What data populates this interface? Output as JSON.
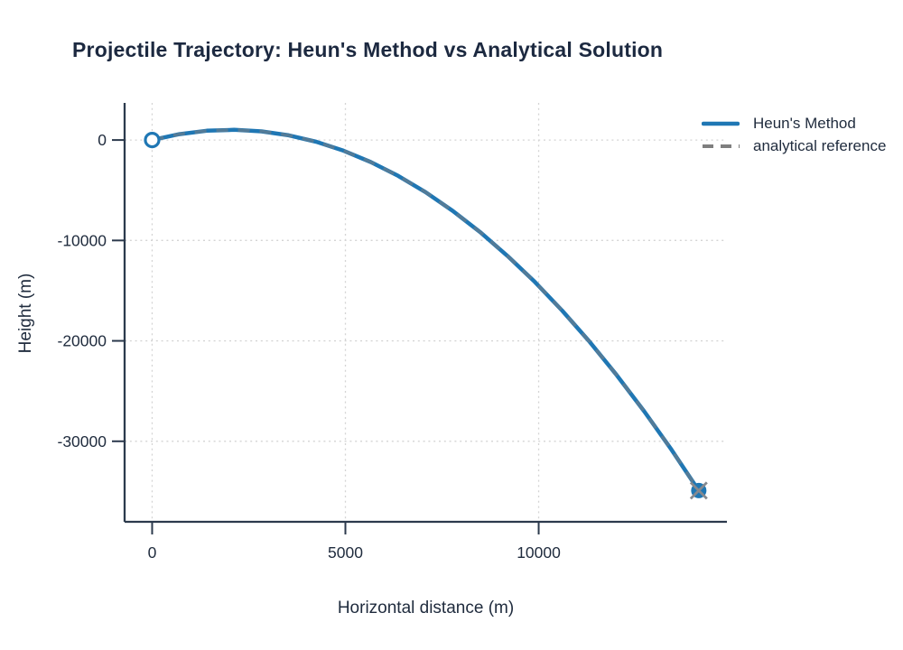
{
  "chart_data": {
    "type": "line",
    "title": "Projectile Trajectory: Heun's Method vs Analytical Solution",
    "xlabel": "Horizontal distance (m)",
    "ylabel": "Height (m)",
    "xlim": [
      -712,
      14870
    ],
    "ylim": [
      -38020,
      3695
    ],
    "x_ticks": {
      "values": [
        0,
        5000,
        10000
      ],
      "labels": [
        "0",
        "5000",
        "10000"
      ]
    },
    "y_ticks": {
      "values": [
        0,
        -10000,
        -20000,
        -30000
      ],
      "labels": [
        "0",
        "-10000",
        "-20000",
        "-30000"
      ]
    },
    "grid": "dotted",
    "legend_position": "top-right-outside",
    "colors": {
      "ink": "#1f2b3d",
      "axis": "#2c3a4d",
      "grid": "#d4d4d4",
      "heun_blue": "#1f77b4",
      "analytical_gray": "#7f7f7f"
    },
    "series": [
      {
        "name": "Heun's Method",
        "color": "#1f77b4",
        "style": "solid",
        "marker_start": "open-circle",
        "marker_end": "filled-circle",
        "points": [
          [
            0,
            0
          ],
          [
            707,
            585
          ],
          [
            1414,
            924
          ],
          [
            2121,
            1018
          ],
          [
            2828,
            866
          ],
          [
            3536,
            470
          ],
          [
            4243,
            -172
          ],
          [
            4950,
            -1059
          ],
          [
            5657,
            -2191
          ],
          [
            6364,
            -3569
          ],
          [
            7071,
            -5191
          ],
          [
            7778,
            -7059
          ],
          [
            8485,
            -9173
          ],
          [
            9192,
            -11531
          ],
          [
            9900,
            -14135
          ],
          [
            10607,
            -16984
          ],
          [
            11314,
            -20078
          ],
          [
            12021,
            -23418
          ],
          [
            12728,
            -27003
          ],
          [
            13435,
            -30833
          ],
          [
            14142,
            -34908
          ]
        ]
      },
      {
        "name": "analytical reference",
        "color": "#7f7f7f",
        "style": "dashed",
        "marker_end": "x-cross",
        "points": [
          [
            0,
            0
          ],
          [
            707,
            585
          ],
          [
            1414,
            924
          ],
          [
            2121,
            1018
          ],
          [
            2828,
            866
          ],
          [
            3536,
            470
          ],
          [
            4243,
            -172
          ],
          [
            4950,
            -1059
          ],
          [
            5657,
            -2191
          ],
          [
            6364,
            -3569
          ],
          [
            7071,
            -5191
          ],
          [
            7778,
            -7059
          ],
          [
            8485,
            -9173
          ],
          [
            9192,
            -11531
          ],
          [
            9900,
            -14135
          ],
          [
            10607,
            -16984
          ],
          [
            11314,
            -20078
          ],
          [
            12021,
            -23418
          ],
          [
            12728,
            -27003
          ],
          [
            13435,
            -30833
          ],
          [
            14142,
            -34908
          ]
        ]
      }
    ]
  }
}
